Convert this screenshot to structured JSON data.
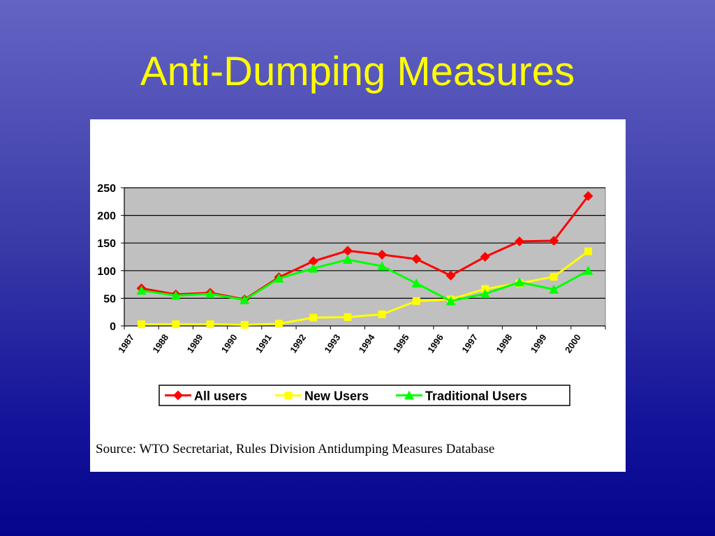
{
  "slide": {
    "title": "Anti-Dumping Measures"
  },
  "source": "Source: WTO Secretariat, Rules Division Antidumping Measures Database",
  "chart_data": {
    "type": "line",
    "title": "",
    "xlabel": "",
    "ylabel": "",
    "categories": [
      "1987",
      "1988",
      "1989",
      "1990",
      "1991",
      "1992",
      "1993",
      "1994",
      "1995",
      "1996",
      "1997",
      "1998",
      "1999",
      "2000"
    ],
    "ylim": [
      0,
      250
    ],
    "yticks": [
      0,
      50,
      100,
      150,
      200,
      250
    ],
    "grid": true,
    "legend": "bottom",
    "series": [
      {
        "name": "All users",
        "color": "#ff0000",
        "marker": "diamond",
        "values": [
          68,
          57,
          60,
          48,
          88,
          117,
          136,
          129,
          121,
          91,
          125,
          153,
          154,
          235
        ]
      },
      {
        "name": "New Users",
        "color": "#ffff00",
        "marker": "square",
        "values": [
          3,
          3,
          3,
          2,
          4,
          15,
          16,
          21,
          45,
          48,
          67,
          77,
          89,
          135
        ]
      },
      {
        "name": "Traditional Users",
        "color": "#00ff00",
        "marker": "triangle",
        "values": [
          64,
          55,
          58,
          47,
          86,
          104,
          120,
          108,
          77,
          45,
          58,
          79,
          66,
          100
        ]
      }
    ]
  }
}
